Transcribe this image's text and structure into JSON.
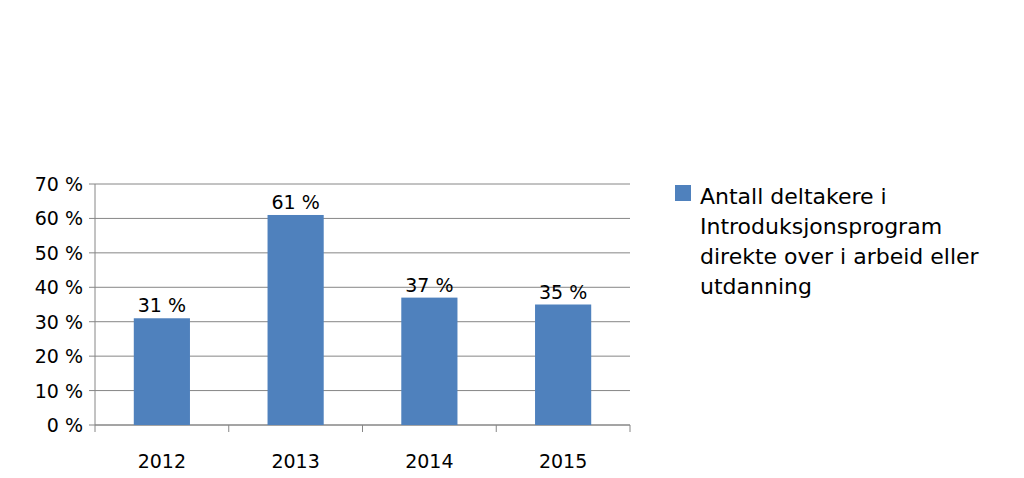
{
  "chart_data": {
    "type": "bar",
    "categories": [
      "2012",
      "2013",
      "2014",
      "2015"
    ],
    "series": [
      {
        "name": "Antall deltakere i Introduksjonsprogram direkte over i arbeid eller utdanning",
        "color": "#4f81bd",
        "values": [
          31,
          61,
          37,
          35
        ],
        "value_labels": [
          "31 %",
          "61 %",
          "37 %",
          "35 %"
        ]
      }
    ],
    "ylim": [
      0,
      70
    ],
    "yticks": [
      {
        "value": 0,
        "label": "0 %"
      },
      {
        "value": 10,
        "label": "10 %"
      },
      {
        "value": 20,
        "label": "20 %"
      },
      {
        "value": 30,
        "label": "30 %"
      },
      {
        "value": 40,
        "label": "40 %"
      },
      {
        "value": 50,
        "label": "50 %"
      },
      {
        "value": 60,
        "label": "60 %"
      },
      {
        "value": 70,
        "label": "70 %"
      }
    ],
    "grid": true,
    "data_labels": true,
    "legend": "right"
  }
}
